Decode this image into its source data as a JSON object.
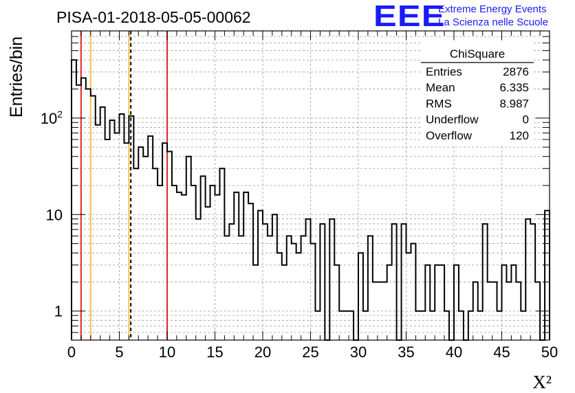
{
  "logo": {
    "mark": "EEE",
    "line1": "Extreme Energy Events",
    "line2": "La Scienza nelle Scuole",
    "color": "#1a1aff"
  },
  "chart_data": {
    "type": "bar",
    "title": "PISA-01-2018-05-05-00062",
    "xlabel": "X²",
    "ylabel": "Entries/bin",
    "xlim": [
      0,
      50
    ],
    "ylim": [
      0.5,
      800
    ],
    "yscale": "log",
    "grid": true,
    "bin_width": 0.5,
    "bin_counts": [
      400,
      220,
      260,
      200,
      170,
      85,
      130,
      60,
      95,
      70,
      110,
      55,
      105,
      30,
      50,
      40,
      65,
      30,
      20,
      55,
      45,
      20,
      17,
      16,
      40,
      20,
      9,
      25,
      12,
      20,
      16,
      30,
      6,
      8,
      17,
      6,
      17,
      13,
      3,
      11,
      8,
      6,
      10,
      4,
      3,
      6,
      5,
      4,
      6,
      9,
      5,
      1,
      8,
      0,
      9,
      3,
      1,
      1,
      1,
      0,
      4,
      1,
      6,
      2,
      2,
      2,
      3,
      8,
      0.5,
      8,
      4,
      5,
      1,
      1,
      3,
      1,
      3,
      3,
      1,
      0,
      3,
      1,
      0,
      1,
      2,
      1,
      8,
      2,
      2,
      1,
      3,
      2,
      3,
      2,
      1,
      9,
      8,
      2,
      0,
      11
    ],
    "vertical_lines": [
      {
        "x": 1,
        "color": "#e32626",
        "style": "solid"
      },
      {
        "x": 2,
        "color": "#f2c24b",
        "style": "solid"
      },
      {
        "x": 6,
        "color": "#f2c24b",
        "style": "solid"
      },
      {
        "x": 6.2,
        "color": "#000000",
        "style": "dashed"
      },
      {
        "x": 10,
        "color": "#e32626",
        "style": "solid"
      }
    ],
    "x_ticks": [
      "0",
      "5",
      "10",
      "15",
      "20",
      "25",
      "30",
      "35",
      "40",
      "45",
      "50"
    ],
    "y_ticks": [
      {
        "value": 1,
        "label": "1"
      },
      {
        "value": 10,
        "label": "10"
      },
      {
        "value": 100,
        "label": "10",
        "sup": "2"
      }
    ],
    "stats_box": {
      "title": "ChiSquare",
      "rows": [
        {
          "label": "Entries",
          "value": "2876"
        },
        {
          "label": "Mean",
          "value": "6.335"
        },
        {
          "label": "RMS",
          "value": "8.987"
        },
        {
          "label": "Underflow",
          "value": "0"
        },
        {
          "label": "Overflow",
          "value": "120"
        }
      ]
    }
  }
}
